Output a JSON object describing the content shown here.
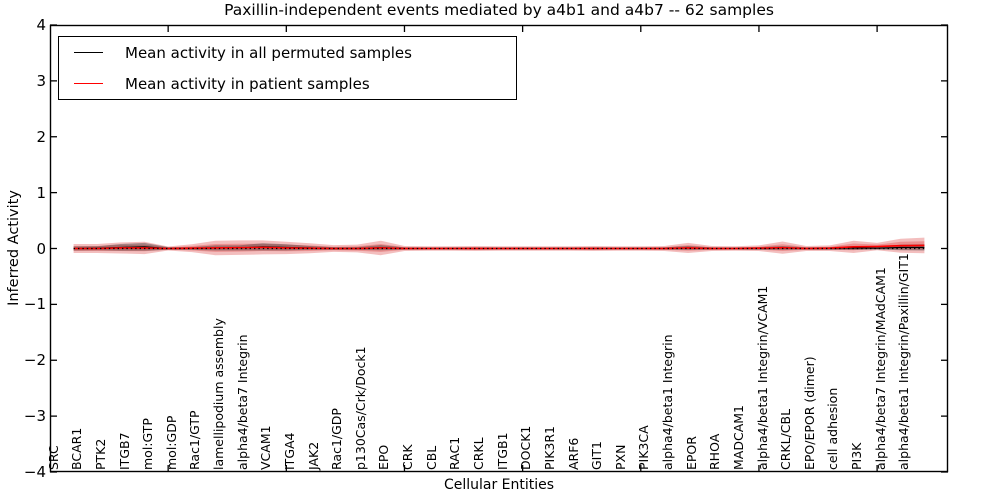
{
  "chart_data": {
    "type": "area",
    "title": "Paxillin-independent events mediated by a4b1 and a4b7 -- 62 samples",
    "xlabel": "Cellular Entities",
    "ylabel": "Inferred Activity",
    "ylim": [
      -4,
      4
    ],
    "yticks": [
      4,
      3,
      2,
      1,
      0,
      -1,
      -2,
      -3,
      -4
    ],
    "xtick_major_indices": [
      4,
      9,
      14,
      19,
      24,
      29,
      34
    ],
    "grid": false,
    "legend_position": "upper left",
    "zero_reference_line": {
      "y": 0,
      "style": "dotted",
      "color": "#000000"
    },
    "categories": [
      "SRC",
      "BCAR1",
      "PTK2",
      "ITGB7",
      "mol:GTP",
      "mol:GDP",
      "Rac1/GTP",
      "lamellipodium assembly",
      "alpha4/beta7 Integrin",
      "VCAM1",
      "ITGA4",
      "JAK2",
      "Rac1/GDP",
      "p130Cas/Crk/Dock1",
      "EPO",
      "CRK",
      "CBL",
      "RAC1",
      "CRKL",
      "ITGB1",
      "DOCK1",
      "PIK3R1",
      "ARF6",
      "GIT1",
      "PXN",
      "PIK3CA",
      "alpha4/beta1 Integrin",
      "EPOR",
      "RHOA",
      "MADCAM1",
      "alpha4/beta1 Integrin/VCAM1",
      "CRKL/CBL",
      "EPO/EPOR (dimer)",
      "cell adhesion",
      "PI3K",
      "alpha4/beta7 Integrin/MAdCAM1",
      "alpha4/beta1 Integrin/Paxillin/GIT1"
    ],
    "series": [
      {
        "name": "Mean activity in all permuted samples",
        "color": "#000000",
        "style": "solid",
        "values": [
          0,
          0.005,
          0.02,
          0.03,
          0,
          0,
          0.01,
          0.01,
          0.03,
          0.02,
          0.01,
          0,
          0,
          0.015,
          0,
          0,
          0,
          0,
          0,
          0,
          0,
          0,
          0,
          0,
          0,
          0,
          0.01,
          0,
          0,
          0,
          0.01,
          0,
          0,
          0.01,
          0.005,
          0.02,
          0.02
        ]
      },
      {
        "name": "Mean activity in patient samples",
        "color": "#ff0000",
        "style": "solid",
        "values": [
          0,
          0,
          0.01,
          0.01,
          0,
          0.005,
          0.01,
          0.015,
          0.02,
          0.01,
          0.005,
          0,
          0,
          0.01,
          0,
          0,
          0,
          0,
          0,
          0,
          0,
          0,
          0,
          0,
          0,
          0,
          0.01,
          0,
          0,
          0.005,
          0.015,
          0,
          0.005,
          0.03,
          0.035,
          0.05,
          0.055
        ]
      }
    ],
    "bands": [
      {
        "name": "patient samples spread (outer)",
        "color": "#d62728",
        "opacity": 0.3,
        "center_series": 1,
        "half_widths": [
          0.08,
          0.08,
          0.1,
          0.11,
          0.035,
          0.07,
          0.13,
          0.13,
          0.125,
          0.11,
          0.09,
          0.06,
          0.07,
          0.13,
          0.045,
          0.04,
          0.04,
          0.045,
          0.04,
          0.04,
          0.04,
          0.04,
          0.045,
          0.04,
          0.04,
          0.045,
          0.09,
          0.045,
          0.04,
          0.05,
          0.11,
          0.045,
          0.05,
          0.11,
          0.065,
          0.125,
          0.14
        ]
      },
      {
        "name": "patient samples spread (inner)",
        "color": "#d62728",
        "opacity": 0.3,
        "center_series": 1,
        "half_widths": [
          0.045,
          0.045,
          0.055,
          0.06,
          0.02,
          0.04,
          0.07,
          0.07,
          0.065,
          0.06,
          0.05,
          0.03,
          0.04,
          0.07,
          0.025,
          0.02,
          0.02,
          0.025,
          0.02,
          0.02,
          0.02,
          0.02,
          0.025,
          0.02,
          0.02,
          0.025,
          0.05,
          0.025,
          0.02,
          0.027,
          0.06,
          0.025,
          0.027,
          0.06,
          0.035,
          0.07,
          0.075
        ]
      },
      {
        "name": "permuted samples spread",
        "color": "#333333",
        "opacity": 0.4,
        "center_series": 0,
        "half_widths": [
          0.035,
          0.035,
          0.06,
          0.07,
          0.025,
          0.025,
          0.045,
          0.045,
          0.065,
          0.055,
          0.035,
          0.025,
          0.025,
          0.045,
          0.02,
          0.02,
          0.02,
          0.02,
          0.02,
          0.02,
          0.02,
          0.02,
          0.02,
          0.02,
          0.02,
          0.02,
          0.035,
          0.02,
          0.02,
          0.025,
          0.035,
          0.02,
          0.025,
          0.035,
          0.025,
          0.05,
          0.055
        ]
      }
    ]
  },
  "colors": {
    "spine": "#000000",
    "background": "#ffffff",
    "permuted_line": "#000000",
    "patient_line": "#ff0000"
  }
}
